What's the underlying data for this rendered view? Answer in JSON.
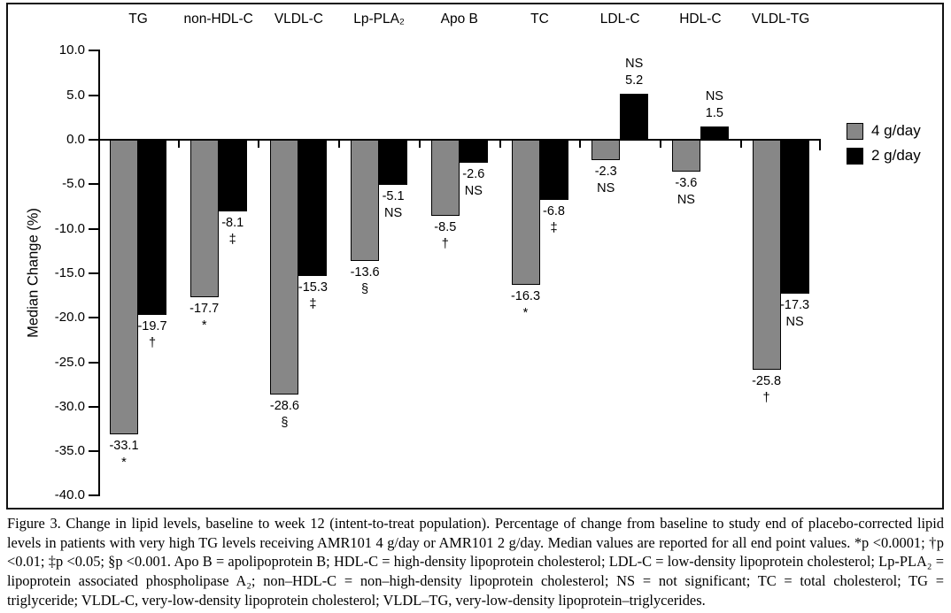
{
  "figure": {
    "caption": "Figure 3. Change in lipid levels, baseline to week 12 (intent-to-treat population). Percentage of change from baseline to study end of placebo-corrected lipid levels in patients with very high TG levels receiving AMR101 4 g/day or AMR101 2 g/day. Median values are reported for all end point values. *p <0.0001; †p <0.01; ‡p <0.05; §p <0.001. Apo B = apolipoprotein B; HDL-C = high-density lipoprotein cholesterol; LDL-C = low-density lipoprotein cholesterol; Lp-PLA₂ = lipoprotein associated phospholipase A₂; non–HDL-C = non–high-density lipoprotein cholesterol; NS = not significant; TC = total cholesterol; TG = triglyceride; VLDL-C, very-low-density lipoprotein cholesterol; VLDL–TG, very-low-density lipoprotein–triglycerides."
  },
  "chart_data": {
    "type": "bar",
    "title": "",
    "categories": [
      "TG",
      "non-HDL-C",
      "VLDL-C",
      "Lp-PLA₂",
      "Apo B",
      "TC",
      "LDL-C",
      "HDL-C",
      "VLDL-TG"
    ],
    "series": [
      {
        "name": "4 g/day",
        "color": "#878787",
        "values": [
          -33.1,
          -17.7,
          -28.6,
          -13.6,
          -8.5,
          -16.3,
          -2.3,
          -3.6,
          -25.8
        ],
        "significance": [
          "*",
          "*",
          "§",
          "§",
          "†",
          "*",
          "NS",
          "NS",
          "†"
        ]
      },
      {
        "name": "2 g/day",
        "color": "#000000",
        "values": [
          -19.7,
          -8.1,
          -15.3,
          -5.1,
          -2.6,
          -6.8,
          5.2,
          1.5,
          -17.3
        ],
        "significance": [
          "†",
          "‡",
          "‡",
          "NS",
          "NS",
          "‡",
          "NS",
          "NS",
          "NS"
        ]
      }
    ],
    "ylabel": "Median Change (%)",
    "ylim": [
      -40,
      10
    ],
    "ytick_step": 5,
    "ytick_decimals": 1,
    "grid": false,
    "legend_position": "right-inside"
  }
}
